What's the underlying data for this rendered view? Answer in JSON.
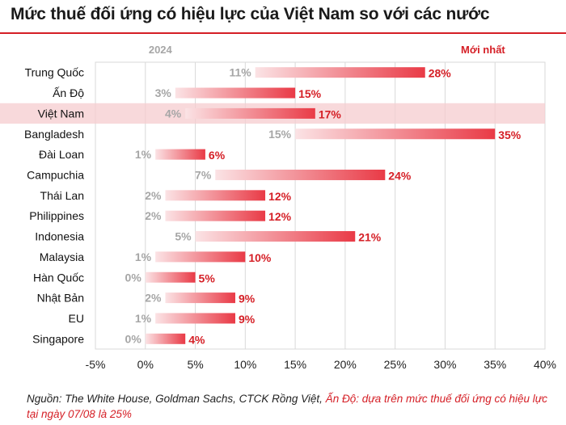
{
  "title": "Mức thuế đối ứng có hiệu lực của Việt Nam so với các nước",
  "source": {
    "text": "Nguồn: The White House, Goldman Sachs, CTCK Rồng Việt, ",
    "note": "Ấn Độ: dựa trên mức thuế đối ứng có hiệu lực tại ngày 07/08 là 25%"
  },
  "colors": {
    "accent": "#d51f26",
    "bar_start": "#fbe3e5",
    "bar_end": "#e93a46",
    "highlight": "#f6cccf",
    "old_label": "#a6a6a6",
    "grid": "#d9d9d9"
  },
  "chart_data": {
    "type": "bar",
    "orientation": "horizontal",
    "series_headers": [
      "2024",
      "Mới nhất"
    ],
    "categories": [
      "Trung Quốc",
      "Ấn Độ",
      "Việt Nam",
      "Bangladesh",
      "Đài Loan",
      "Campuchia",
      "Thái Lan",
      "Philippines",
      "Indonesia",
      "Malaysia",
      "Hàn Quốc",
      "Nhật Bản",
      "EU",
      "Singapore"
    ],
    "series": [
      {
        "name": "2024",
        "values": [
          11,
          3,
          4,
          15,
          1,
          7,
          2,
          2,
          5,
          1,
          0,
          2,
          1,
          0
        ]
      },
      {
        "name": "Mới nhất",
        "values": [
          28,
          15,
          17,
          35,
          6,
          24,
          12,
          12,
          21,
          10,
          5,
          9,
          9,
          4
        ]
      }
    ],
    "value_labels_old": [
      "11%",
      "3%",
      "4%",
      "15%",
      "1%",
      "7%",
      "2%",
      "2%",
      "5%",
      "1%",
      "0%",
      "2%",
      "1%",
      "0%"
    ],
    "value_labels_new": [
      "28%",
      "15%",
      "17%",
      "35%",
      "6%",
      "24%",
      "12%",
      "12%",
      "21%",
      "10%",
      "5%",
      "9%",
      "9%",
      "4%"
    ],
    "highlight_category": "Việt Nam",
    "xlim": [
      -5,
      40
    ],
    "xticks": [
      -5,
      0,
      5,
      10,
      15,
      20,
      25,
      30,
      35,
      40
    ],
    "xtick_labels": [
      "-5%",
      "0%",
      "5%",
      "10%",
      "15%",
      "20%",
      "25%",
      "30%",
      "35%",
      "40%"
    ],
    "grid": true
  }
}
